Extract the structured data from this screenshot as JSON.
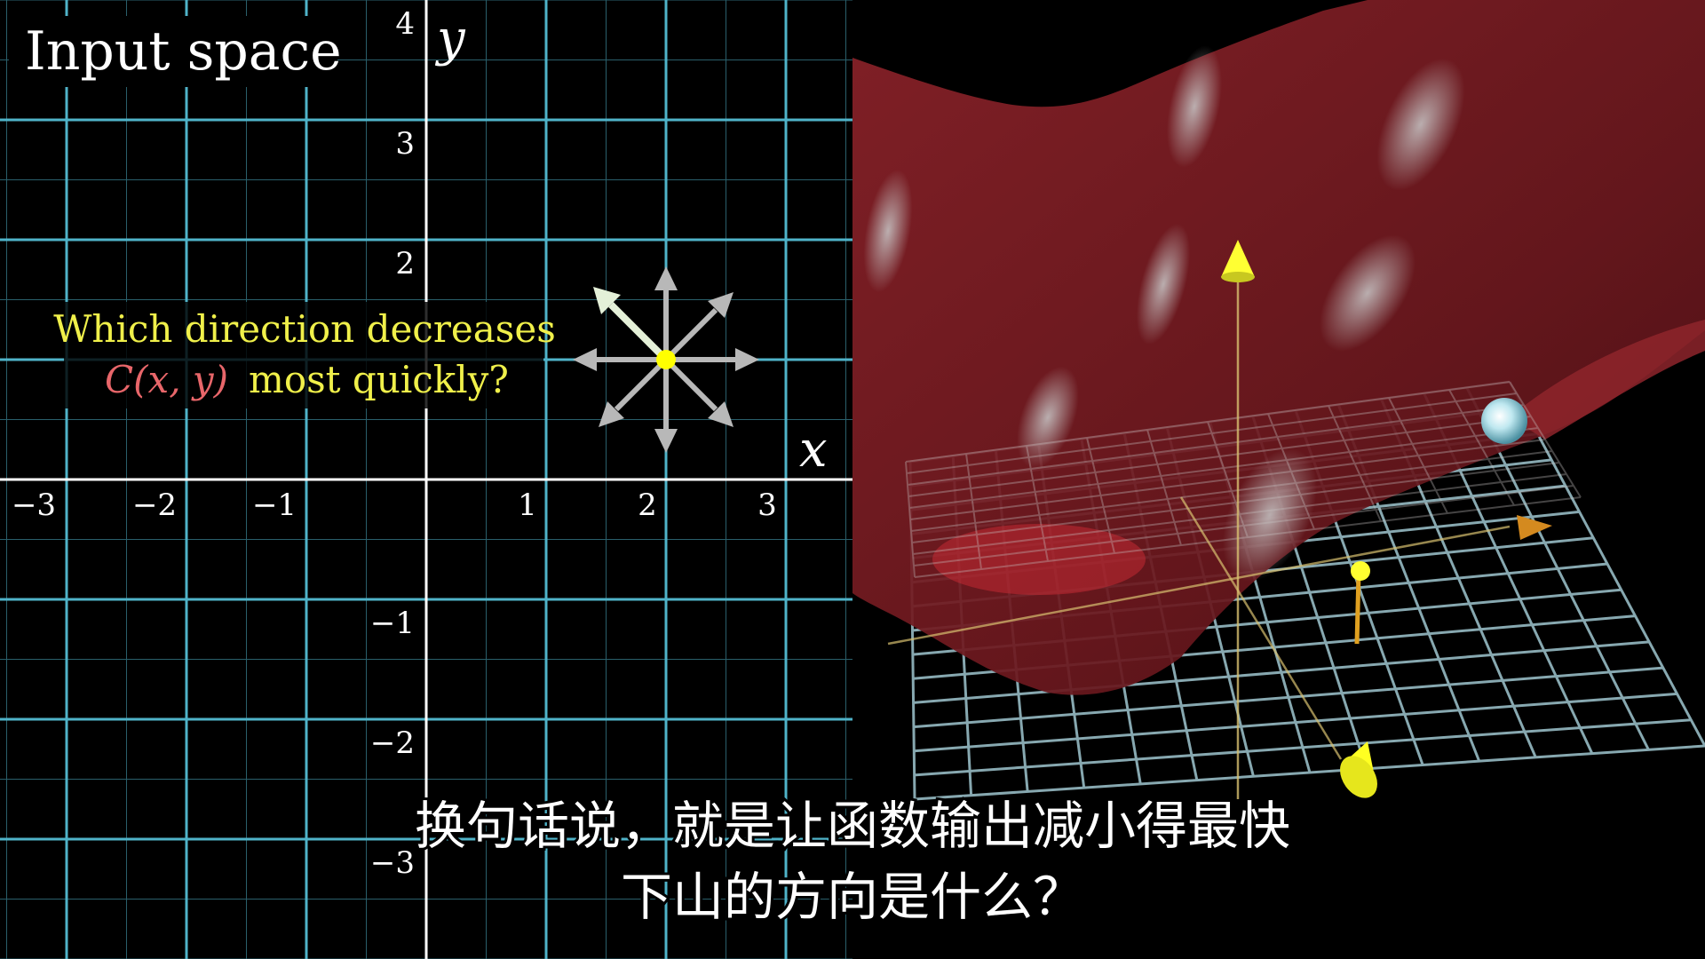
{
  "title": "Input space",
  "axes": {
    "x_var": "x",
    "y_var": "y",
    "x_ticks": [
      "−3",
      "−2",
      "−1",
      "1",
      "2",
      "3"
    ],
    "y_ticks": [
      "4",
      "3",
      "2",
      "−1",
      "−2",
      "−3"
    ]
  },
  "question": {
    "line1": "Which direction decreases",
    "line2_func": "C(x, y)",
    "line2_rest": "most quickly?"
  },
  "subtitle": {
    "line1": "换句话说，就是让函数输出减小得最快",
    "line2": "下山的方向是什么？"
  },
  "colors": {
    "grid": "#4fb3c9",
    "axis": "#ffffff",
    "question_text": "#f0f04a",
    "function_text": "#e8666a",
    "surface": "#7a1c22",
    "point": "#ffff00",
    "ball": "#bfe8f0"
  },
  "icons": {
    "direction_arrows": "arrow-rose-icon",
    "point_marker": "point-icon",
    "ball": "ball-icon"
  }
}
